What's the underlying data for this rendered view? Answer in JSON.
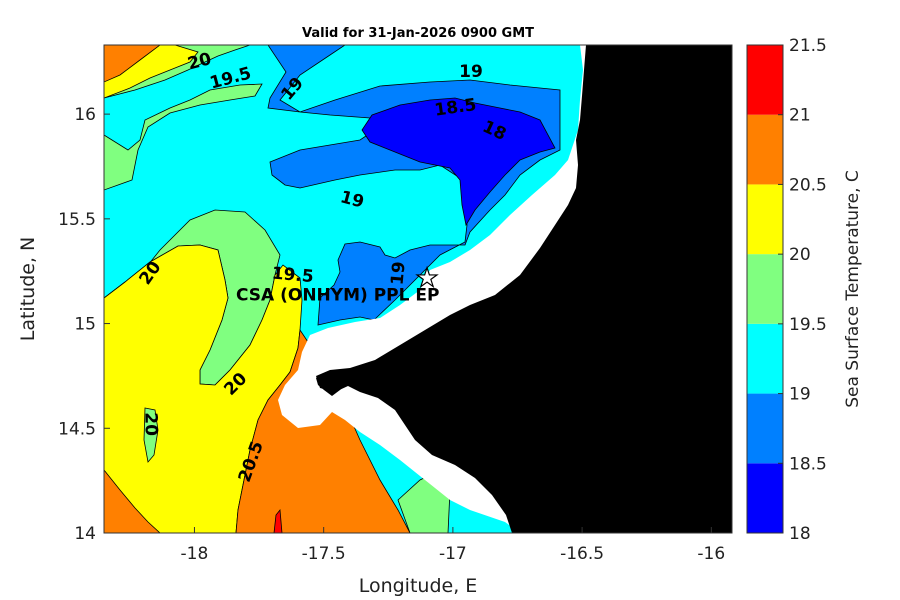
{
  "chart_data": {
    "type": "contour-map",
    "title": "Valid for 31-Jan-2026 0900 GMT",
    "xlabel": "Longitude, E",
    "ylabel": "Latitude, N",
    "xlim": [
      -18.35,
      -15.92
    ],
    "ylim": [
      14.0,
      16.33
    ],
    "xticks": [
      -18,
      -17.5,
      -17,
      -16.5,
      -16
    ],
    "xtick_labels": [
      "-18",
      "-17.5",
      "-17",
      "-16.5",
      "-16"
    ],
    "yticks": [
      14,
      14.5,
      15,
      15.5,
      16
    ],
    "ytick_labels": [
      "14",
      "14.5",
      "15",
      "15.5",
      "16"
    ],
    "colorbar": {
      "label": "Sea Surface Temperature, C",
      "levels": [
        18,
        18.5,
        19,
        19.5,
        20,
        20.5,
        21,
        21.5
      ],
      "tick_labels": [
        "18",
        "18.5",
        "19",
        "19.5",
        "20",
        "20.5",
        "21",
        "21.5"
      ],
      "colors": [
        "#0000ff",
        "#0080ff",
        "#00ffff",
        "#80ff80",
        "#ffff00",
        "#ff8000",
        "#ff0000"
      ]
    },
    "contour_labels": [
      {
        "text": "20",
        "lon": -17.98,
        "lat": 16.25,
        "angle": -15
      },
      {
        "text": "19.5",
        "lon": -17.86,
        "lat": 16.17,
        "angle": -15
      },
      {
        "text": "19",
        "lon": -17.62,
        "lat": 16.12,
        "angle": -50
      },
      {
        "text": "19",
        "lon": -16.93,
        "lat": 16.2,
        "angle": 0
      },
      {
        "text": "18.5",
        "lon": -16.99,
        "lat": 16.03,
        "angle": -8
      },
      {
        "text": "18",
        "lon": -16.84,
        "lat": 15.92,
        "angle": 25
      },
      {
        "text": "19",
        "lon": -17.39,
        "lat": 15.59,
        "angle": 15
      },
      {
        "text": "20",
        "lon": -18.17,
        "lat": 15.24,
        "angle": -55
      },
      {
        "text": "19.5",
        "lon": -17.62,
        "lat": 15.23,
        "angle": 5
      },
      {
        "text": "19",
        "lon": -17.21,
        "lat": 15.24,
        "angle": -85
      },
      {
        "text": "20",
        "lon": -17.84,
        "lat": 14.71,
        "angle": -45
      },
      {
        "text": "20",
        "lon": -18.17,
        "lat": 14.52,
        "angle": 90
      },
      {
        "text": "20.5",
        "lon": -17.78,
        "lat": 14.34,
        "angle": -70
      }
    ],
    "site": {
      "name": "CSA (ONHYM) PPL EP",
      "lon": -17.1,
      "lat": 15.22,
      "marker": "star"
    },
    "land_color": "#000000",
    "coastal_mask_color": "#ffffff"
  }
}
